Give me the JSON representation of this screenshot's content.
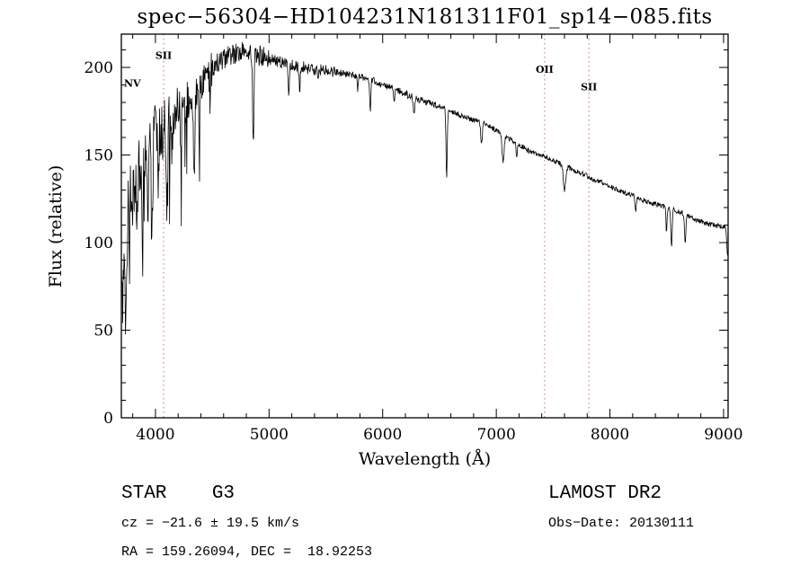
{
  "title": "spec−56304−HD104231N181311F01_sp14−085.fits",
  "axes": {
    "x_label": "Wavelength (Å)",
    "y_label": "Flux (relative)"
  },
  "footer": {
    "class_label": "STAR    G3",
    "survey": "LAMOST DR2",
    "cz": "cz = −21.6 ± 19.5 km/s",
    "obs_date": "Obs−Date: 20130111",
    "coords": "RA = 159.26094, DEC =  18.92253"
  },
  "chart_data": {
    "type": "line",
    "title": "spec−56304−HD104231N181311F01_sp14−085.fits",
    "xlabel": "Wavelength (Å)",
    "ylabel": "Flux (relative)",
    "xlim": [
      3700,
      9040
    ],
    "ylim": [
      0,
      219
    ],
    "x_ticks": [
      4000,
      5000,
      6000,
      7000,
      8000,
      9000
    ],
    "x_minor_step": 200,
    "y_ticks": [
      0,
      50,
      100,
      150,
      200
    ],
    "y_minor_step": 10,
    "line_color": "#000000",
    "marker_color": "#c87070",
    "line_markers": [
      {
        "label": "NV",
        "wavelength": 3716,
        "label_flux": 189,
        "label_anchor": "start",
        "has_line": false
      },
      {
        "label": "SII",
        "wavelength": 4072,
        "label_flux": 205,
        "has_line": true
      },
      {
        "label": "OII",
        "wavelength": 7425,
        "label_flux": 197,
        "has_line": true
      },
      {
        "label": "SII",
        "wavelength": 7815,
        "label_flux": 187,
        "has_line": true
      }
    ],
    "envelope": [
      [
        3700,
        95
      ],
      [
        3720,
        105
      ],
      [
        3760,
        122
      ],
      [
        3800,
        136
      ],
      [
        3850,
        146
      ],
      [
        3900,
        152
      ],
      [
        3950,
        158
      ],
      [
        4000,
        163
      ],
      [
        4100,
        168
      ],
      [
        4200,
        175
      ],
      [
        4300,
        182
      ],
      [
        4400,
        192
      ],
      [
        4500,
        200
      ],
      [
        4600,
        205
      ],
      [
        4700,
        208
      ],
      [
        4800,
        210
      ],
      [
        4900,
        207
      ],
      [
        5000,
        205
      ],
      [
        5100,
        203
      ],
      [
        5200,
        201
      ],
      [
        5300,
        200
      ],
      [
        5400,
        199
      ],
      [
        5500,
        198
      ],
      [
        5600,
        197
      ],
      [
        5700,
        196
      ],
      [
        5800,
        195
      ],
      [
        5900,
        193
      ],
      [
        6000,
        190
      ],
      [
        6100,
        188
      ],
      [
        6200,
        185
      ],
      [
        6300,
        182
      ],
      [
        6400,
        180
      ],
      [
        6500,
        178
      ],
      [
        6600,
        175
      ],
      [
        6700,
        172
      ],
      [
        6800,
        170
      ],
      [
        6900,
        168
      ],
      [
        7000,
        164
      ],
      [
        7100,
        160
      ],
      [
        7200,
        156
      ],
      [
        7300,
        152
      ],
      [
        7400,
        150
      ],
      [
        7500,
        147
      ],
      [
        7600,
        144
      ],
      [
        7700,
        141
      ],
      [
        7800,
        138
      ],
      [
        7900,
        135
      ],
      [
        8000,
        132
      ],
      [
        8100,
        129
      ],
      [
        8200,
        127
      ],
      [
        8300,
        124
      ],
      [
        8400,
        122
      ],
      [
        8500,
        120
      ],
      [
        8600,
        118
      ],
      [
        8700,
        115
      ],
      [
        8800,
        112
      ],
      [
        8900,
        110
      ],
      [
        9000,
        109
      ],
      [
        9040,
        108
      ]
    ],
    "features": [
      {
        "wl": 3712,
        "depth": 45,
        "width": 8
      },
      {
        "wl": 3735,
        "depth": 55,
        "width": 7
      },
      {
        "wl": 3750,
        "depth": 40,
        "width": 6
      },
      {
        "wl": 3771,
        "depth": 35,
        "width": 6
      },
      {
        "wl": 3798,
        "depth": 40,
        "width": 6
      },
      {
        "wl": 3835,
        "depth": 45,
        "width": 7
      },
      {
        "wl": 3889,
        "depth": 50,
        "width": 7
      },
      {
        "wl": 3934,
        "depth": 60,
        "width": 8
      },
      {
        "wl": 3969,
        "depth": 60,
        "width": 9
      },
      {
        "wl": 4026,
        "depth": 25,
        "width": 6
      },
      {
        "wl": 4102,
        "depth": 50,
        "width": 8
      },
      {
        "wl": 4144,
        "depth": 25,
        "width": 6
      },
      {
        "wl": 4226,
        "depth": 30,
        "width": 6
      },
      {
        "wl": 4340,
        "depth": 50,
        "width": 8
      },
      {
        "wl": 4383,
        "depth": 30,
        "width": 6
      },
      {
        "wl": 4481,
        "depth": 20,
        "width": 6
      },
      {
        "wl": 4861,
        "depth": 50,
        "width": 8
      },
      {
        "wl": 5172,
        "depth": 16,
        "width": 8
      },
      {
        "wl": 5270,
        "depth": 12,
        "width": 7
      },
      {
        "wl": 5430,
        "depth": 8,
        "width": 7
      },
      {
        "wl": 5780,
        "depth": 8,
        "width": 7
      },
      {
        "wl": 5890,
        "depth": 18,
        "width": 8
      },
      {
        "wl": 6100,
        "depth": 8,
        "width": 7
      },
      {
        "wl": 6277,
        "depth": 10,
        "width": 8
      },
      {
        "wl": 6563,
        "depth": 38,
        "width": 8
      },
      {
        "wl": 6870,
        "depth": 12,
        "width": 10
      },
      {
        "wl": 7060,
        "depth": 16,
        "width": 12
      },
      {
        "wl": 7180,
        "depth": 8,
        "width": 8
      },
      {
        "wl": 7600,
        "depth": 14,
        "width": 14
      },
      {
        "wl": 8227,
        "depth": 8,
        "width": 8
      },
      {
        "wl": 8498,
        "depth": 14,
        "width": 7
      },
      {
        "wl": 8542,
        "depth": 22,
        "width": 8
      },
      {
        "wl": 8662,
        "depth": 18,
        "width": 8
      },
      {
        "wl": 9035,
        "depth": 15,
        "width": 10
      }
    ],
    "noise_regions": [
      {
        "from": 3700,
        "to": 3900,
        "amp": 22
      },
      {
        "from": 3900,
        "to": 4200,
        "amp": 16
      },
      {
        "from": 4200,
        "to": 4500,
        "amp": 12
      },
      {
        "from": 4500,
        "to": 5000,
        "amp": 6
      },
      {
        "from": 5000,
        "to": 5600,
        "amp": 3.5
      },
      {
        "from": 5600,
        "to": 6500,
        "amp": 2
      },
      {
        "from": 6500,
        "to": 9041,
        "amp": 1.5
      }
    ],
    "blue_spikes": {
      "below": 4450,
      "probability": 0.07,
      "max_extra_depth": 60
    },
    "sample_step": 4,
    "seed": 20130111
  }
}
